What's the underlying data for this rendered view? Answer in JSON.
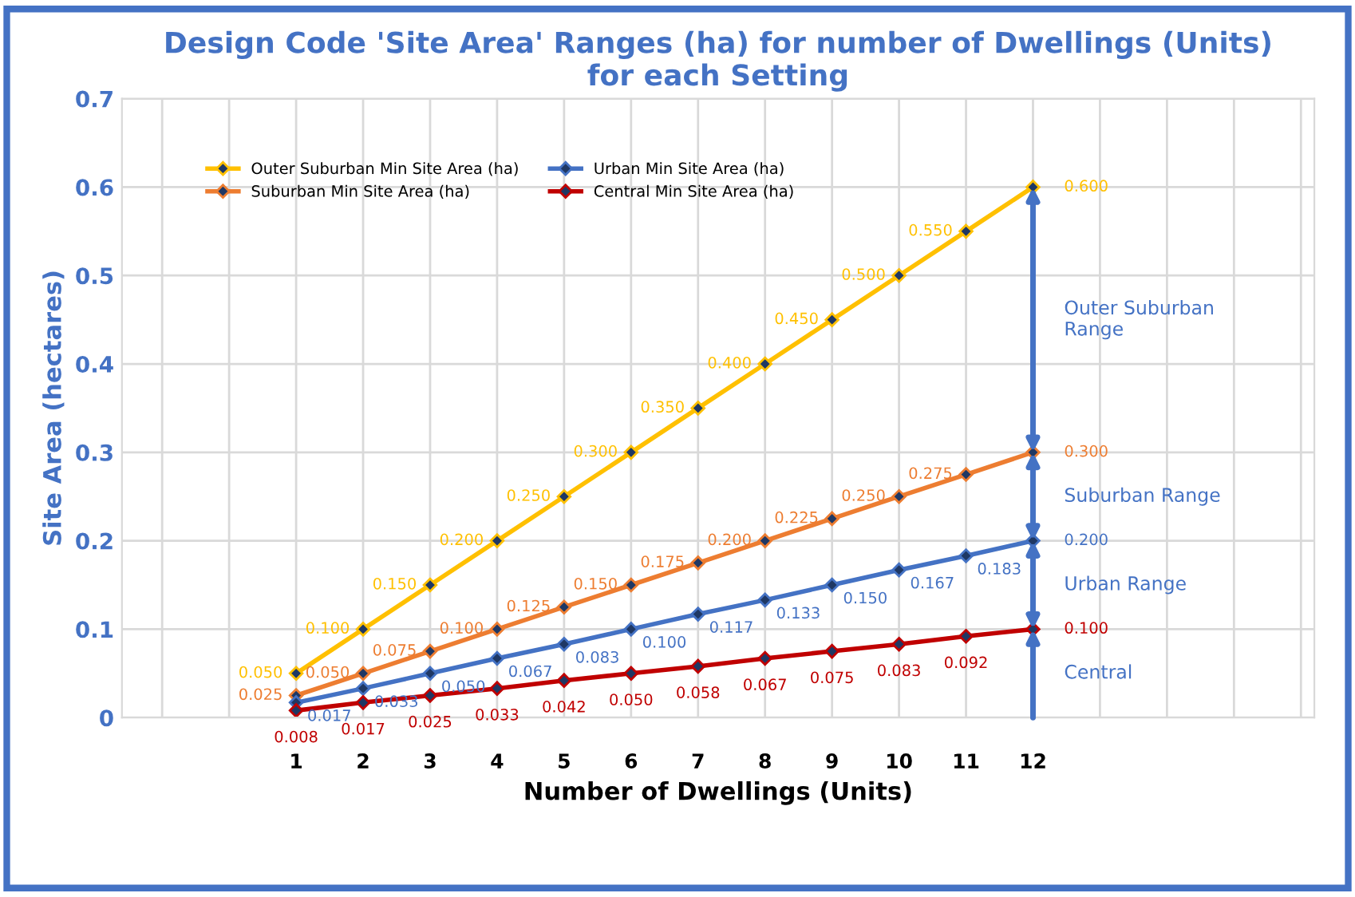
{
  "chart_data": {
    "type": "line",
    "title": "Design Code 'Site Area' Ranges (ha) for number of Dwellings (Units)\nfor each Setting",
    "xlabel": "Number of Dwellings (Units)",
    "ylabel": "Site Area (hectares)",
    "x": [
      1,
      2,
      3,
      4,
      5,
      6,
      7,
      8,
      9,
      10,
      11,
      12
    ],
    "series": [
      {
        "name": "Outer Suburban Min Site Area (ha)",
        "color": "#ffc000",
        "values": [
          0.05,
          0.1,
          0.15,
          0.2,
          0.25,
          0.3,
          0.35,
          0.4,
          0.45,
          0.5,
          0.55,
          0.6
        ],
        "value_labels": [
          "0.050",
          "0.100",
          "0.150",
          "0.200",
          "0.250",
          "0.300",
          "0.350",
          "0.400",
          "0.450",
          "0.500",
          "0.550",
          "0.600"
        ]
      },
      {
        "name": "Suburban Min Site Area (ha)",
        "color": "#ed7d31",
        "values": [
          0.025,
          0.05,
          0.075,
          0.1,
          0.125,
          0.15,
          0.175,
          0.2,
          0.225,
          0.25,
          0.275,
          0.3
        ],
        "value_labels": [
          "0.025",
          "0.050",
          "0.075",
          "0.100",
          "0.125",
          "0.150",
          "0.175",
          "0.200",
          "0.225",
          "0.250",
          "0.275",
          "0.300"
        ]
      },
      {
        "name": "Urban Min Site Area (ha)",
        "color": "#4472c4",
        "values": [
          0.017,
          0.033,
          0.05,
          0.067,
          0.083,
          0.1,
          0.117,
          0.133,
          0.15,
          0.167,
          0.183,
          0.2
        ],
        "value_labels": [
          "0.017",
          "0.033",
          "0.050",
          "0.067",
          "0.083",
          "0.100",
          "0.117",
          "0.133",
          "0.150",
          "0.167",
          "0.183",
          "0.200"
        ]
      },
      {
        "name": "Central Min Site Area (ha)",
        "color": "#c00000",
        "values": [
          0.008,
          0.017,
          0.025,
          0.033,
          0.042,
          0.05,
          0.058,
          0.067,
          0.075,
          0.083,
          0.092,
          0.1
        ],
        "value_labels": [
          "0.008",
          "0.017",
          "0.025",
          "0.033",
          "0.042",
          "0.050",
          "0.058",
          "0.067",
          "0.075",
          "0.083",
          "0.092",
          "0.100"
        ]
      }
    ],
    "annotations": [
      "Outer Suburban\nRange",
      "Suburban Range",
      "Urban Range",
      "Central"
    ],
    "xlim": [
      -1.6,
      16.2
    ],
    "xticks": [
      {
        "value": -1,
        "label": null
      },
      {
        "value": 0,
        "label": null
      },
      1,
      2,
      3,
      4,
      5,
      6,
      7,
      8,
      9,
      10,
      11,
      12,
      {
        "value": 13,
        "label": null
      },
      {
        "value": 14,
        "label": null
      },
      {
        "value": 15,
        "label": null
      },
      {
        "value": 16,
        "label": null
      }
    ],
    "ylim": [
      0,
      0.7
    ],
    "yticks": [
      0,
      0.1,
      0.2,
      0.3,
      0.4,
      0.5,
      0.6,
      0.7
    ],
    "grid": true,
    "legend": "top left",
    "marker": "diamond",
    "line_style": "solid"
  }
}
